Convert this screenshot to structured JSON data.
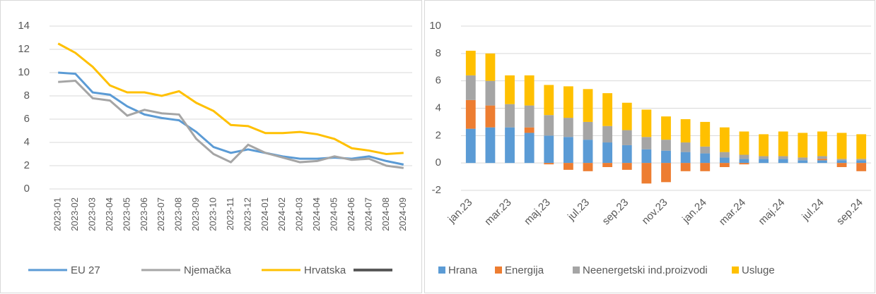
{
  "chart_data": [
    {
      "type": "line",
      "categories": [
        "2023-01",
        "2023-02",
        "2023-03",
        "2023-04",
        "2023-05",
        "2023-06",
        "2023-07",
        "2023-08",
        "2023-09",
        "2023-10",
        "2023-11",
        "2023-12",
        "2024-01",
        "2024-02",
        "2024-03",
        "2024-04",
        "2024-05",
        "2024-06",
        "2024-07",
        "2024-08",
        "2024-09"
      ],
      "series": [
        {
          "name": "EU 27",
          "color": "#5b9bd5",
          "values": [
            10.0,
            9.9,
            8.3,
            8.1,
            7.1,
            6.4,
            6.1,
            5.9,
            4.9,
            3.6,
            3.1,
            3.4,
            3.1,
            2.8,
            2.6,
            2.6,
            2.7,
            2.6,
            2.8,
            2.4,
            2.1
          ]
        },
        {
          "name": "Njemačka",
          "color": "#a5a5a5",
          "values": [
            9.2,
            9.3,
            7.8,
            7.6,
            6.3,
            6.8,
            6.5,
            6.4,
            4.3,
            3.0,
            2.3,
            3.8,
            3.1,
            2.7,
            2.3,
            2.4,
            2.8,
            2.5,
            2.6,
            2.0,
            1.8
          ]
        },
        {
          "name": "Hrvatska",
          "color": "#ffc000",
          "values": [
            12.5,
            11.7,
            10.5,
            8.9,
            8.3,
            8.3,
            8.0,
            8.4,
            7.4,
            6.7,
            5.5,
            5.4,
            4.8,
            4.8,
            4.9,
            4.7,
            4.3,
            3.5,
            3.3,
            3.0,
            3.1
          ]
        }
      ],
      "ylim": [
        0,
        14
      ],
      "yticks": [
        0,
        2,
        4,
        6,
        8,
        10,
        12,
        14
      ],
      "grid": true,
      "legend": "bottom"
    },
    {
      "type": "stacked_bar",
      "categories": [
        "jan.23",
        null,
        "mar.23",
        null,
        "maj.23",
        null,
        "jul.23",
        null,
        "sep.23",
        null,
        "nov.23",
        null,
        "jan.24",
        null,
        "mar.24",
        null,
        "maj.24",
        null,
        "jul.24",
        null,
        "sep.24"
      ],
      "series": [
        {
          "name": "Hrana",
          "color": "#5b9bd5",
          "values": [
            2.5,
            2.6,
            2.6,
            2.2,
            2.0,
            1.9,
            1.7,
            1.5,
            1.3,
            1.0,
            0.9,
            0.8,
            0.7,
            0.4,
            0.3,
            0.3,
            0.3,
            0.2,
            0.2,
            0.2,
            0.2
          ]
        },
        {
          "name": "Energija",
          "color": "#ed7d31",
          "values": [
            2.1,
            1.6,
            0.0,
            0.4,
            -0.1,
            -0.5,
            -0.6,
            -0.3,
            -0.5,
            -1.5,
            -1.4,
            -0.6,
            -0.6,
            -0.3,
            -0.1,
            0,
            0,
            0,
            0.1,
            -0.3,
            -0.6
          ]
        },
        {
          "name": "Neenergetski ind.proizvodi",
          "color": "#a5a5a5",
          "values": [
            1.8,
            1.8,
            1.7,
            1.6,
            1.5,
            1.4,
            1.3,
            1.2,
            1.1,
            0.9,
            0.8,
            0.7,
            0.5,
            0.4,
            0.3,
            0.2,
            0.2,
            0.2,
            0.2,
            0.1,
            0.1
          ]
        },
        {
          "name": "Usluge",
          "color": "#ffc000",
          "values": [
            1.8,
            2.0,
            2.1,
            2.2,
            2.2,
            2.3,
            2.4,
            2.4,
            2.0,
            2.0,
            1.7,
            1.7,
            1.8,
            1.8,
            1.7,
            1.6,
            1.8,
            1.8,
            1.8,
            1.9,
            1.8
          ]
        }
      ],
      "ylim": [
        -2,
        10
      ],
      "yticks": [
        -2,
        0,
        2,
        4,
        6,
        8,
        10
      ],
      "grid": true,
      "legend": "bottom"
    }
  ]
}
